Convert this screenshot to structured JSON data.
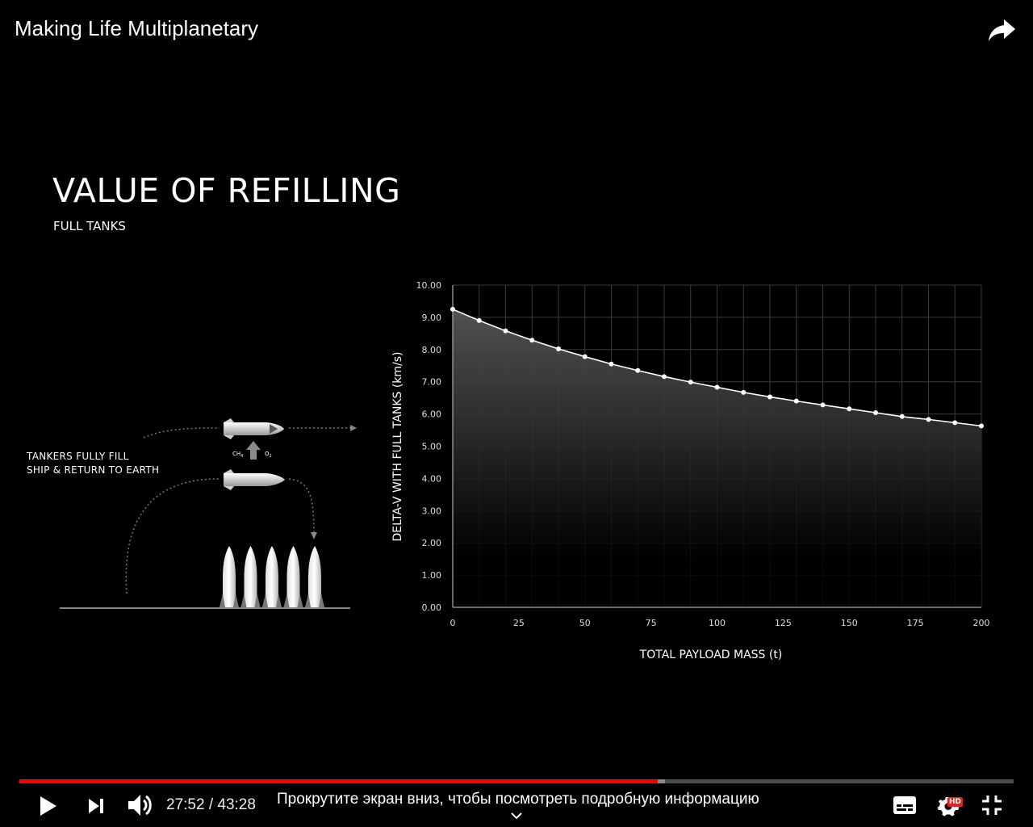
{
  "video": {
    "title": "Making Life Multiplanetary",
    "share_icon": "share-arrow-icon"
  },
  "slide": {
    "title": "VALUE OF REFILLING",
    "subtitle": "FULL TANKS",
    "diagram": {
      "caption_line1": "TANKERS FULLY FILL",
      "caption_line2": "SHIP & RETURN TO EARTH",
      "label_ch4": "CH",
      "label_ch4_sub": "4",
      "label_o2": "O",
      "label_o2_sub": "2",
      "tanker_count": 5
    }
  },
  "chart_data": {
    "type": "line",
    "xlabel": "TOTAL PAYLOAD MASS (t)",
    "ylabel": "DELTA-V WITH FULL TANKS (km/s)",
    "xlim": [
      0,
      200
    ],
    "ylim": [
      0,
      10
    ],
    "x_ticks": [
      "0",
      "25",
      "50",
      "75",
      "100",
      "125",
      "150",
      "175",
      "200"
    ],
    "y_ticks": [
      "0.00",
      "1.00",
      "2.00",
      "3.00",
      "4.00",
      "5.00",
      "6.00",
      "7.00",
      "8.00",
      "9.00",
      "10.00"
    ],
    "x": [
      0,
      10,
      20,
      30,
      40,
      50,
      60,
      70,
      80,
      90,
      100,
      110,
      120,
      130,
      140,
      150,
      160,
      170,
      180,
      190,
      200
    ],
    "y": [
      9.25,
      8.9,
      8.58,
      8.29,
      8.02,
      7.78,
      7.55,
      7.35,
      7.16,
      6.99,
      6.83,
      6.67,
      6.53,
      6.4,
      6.28,
      6.16,
      6.04,
      5.92,
      5.83,
      5.73,
      5.63
    ],
    "grid": true,
    "fill_under_line": true,
    "colors": {
      "line": "#ffffff",
      "grid": "#3a3a3a",
      "axis": "#aaaaaa"
    }
  },
  "player": {
    "current_time": "27:52",
    "duration": "43:28",
    "played_fraction": 0.642,
    "buffered_fraction": 0.649,
    "scroll_hint": "Прокрутите экран вниз, чтобы посмотреть подробную информацию",
    "hd_badge": "HD",
    "colors": {
      "played": "#ff0000",
      "buffered": "#8a8a8a",
      "track": "#4d4d4d"
    }
  }
}
